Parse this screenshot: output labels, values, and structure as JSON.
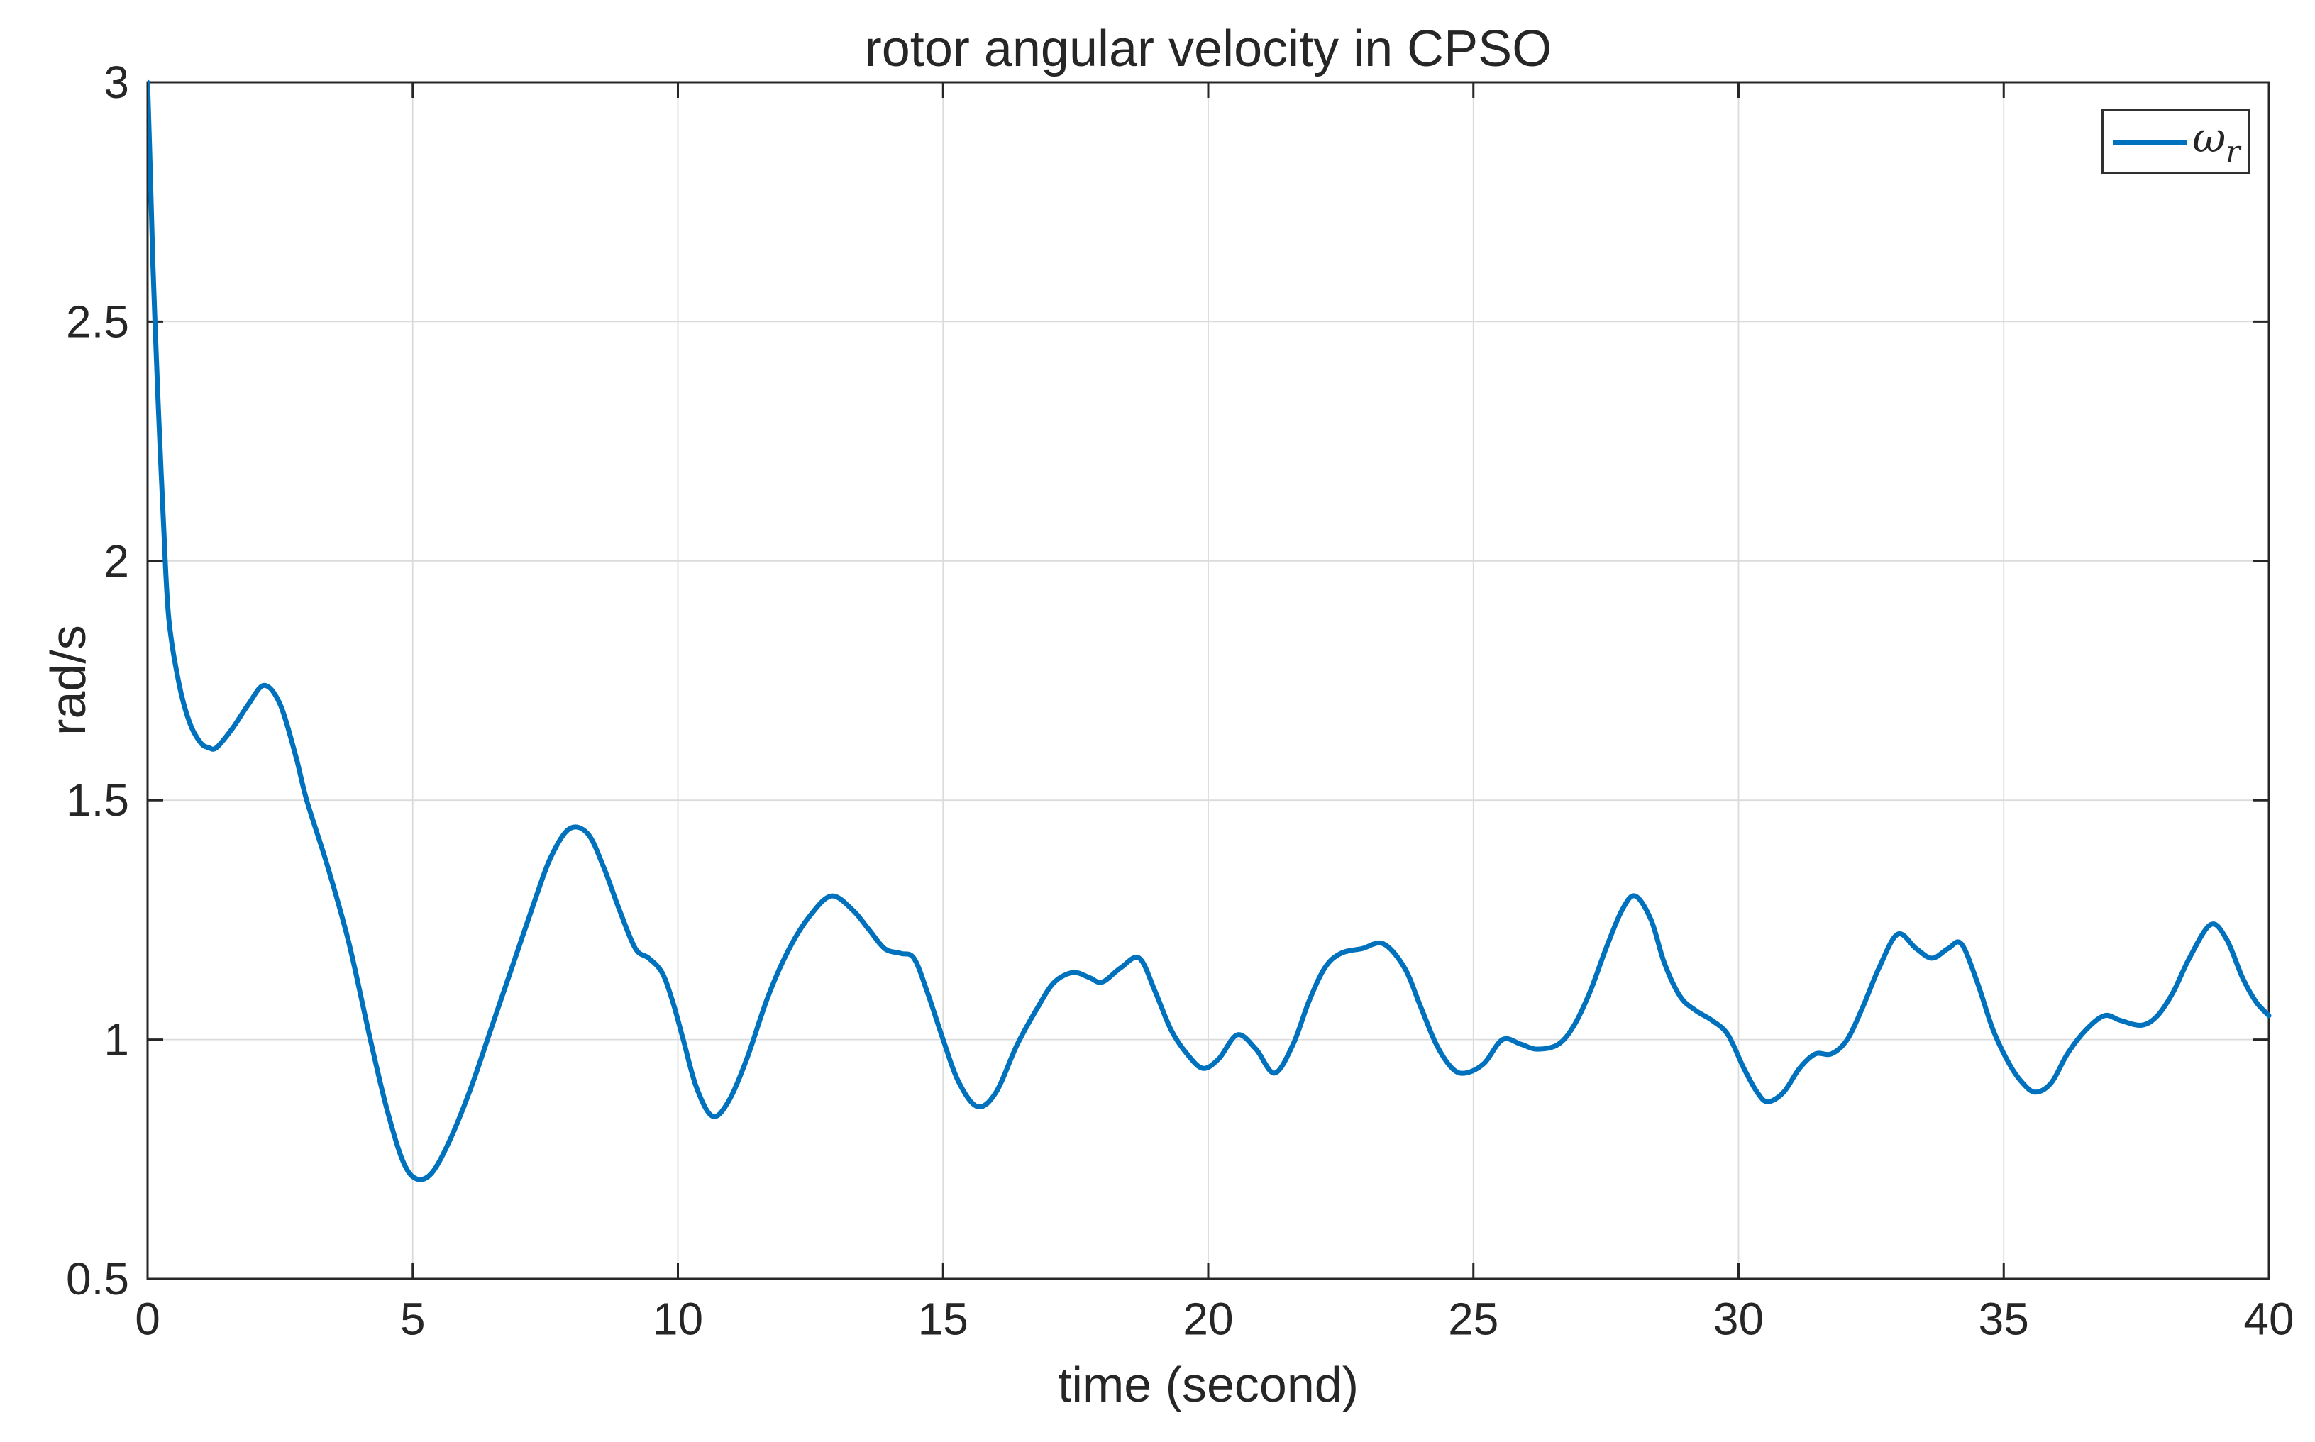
{
  "chart_data": {
    "type": "line",
    "title": "rotor angular velocity in CPSO",
    "xlabel": "time (second)",
    "ylabel": "rad/s",
    "xlim": [
      0,
      40
    ],
    "ylim": [
      0.5,
      3
    ],
    "xticks": [
      0,
      5,
      10,
      15,
      20,
      25,
      30,
      35,
      40
    ],
    "yticks": [
      0.5,
      1,
      1.5,
      2,
      2.5,
      3
    ],
    "grid": true,
    "background_color": "#ffffff",
    "axis_color": "#262626",
    "grid_color": "#dbdbdb",
    "legend": {
      "position": "northeast",
      "symbol": "ω",
      "subscript": "r"
    },
    "series": [
      {
        "name": "omega_r",
        "color": "#0072BD",
        "x": [
          0,
          0.05,
          0.1,
          0.15,
          0.2,
          0.3,
          0.4,
          0.6,
          0.8,
          1.0,
          1.15,
          1.3,
          1.6,
          1.9,
          2.2,
          2.5,
          2.8,
          3.0,
          3.4,
          3.8,
          4.2,
          4.5,
          4.8,
          5.05,
          5.35,
          5.7,
          6.1,
          6.5,
          6.9,
          7.3,
          7.6,
          7.95,
          8.3,
          8.6,
          8.9,
          9.2,
          9.45,
          9.7,
          9.9,
          10.1,
          10.35,
          10.65,
          10.95,
          11.3,
          11.7,
          12.1,
          12.5,
          12.9,
          13.3,
          13.6,
          13.9,
          14.2,
          14.45,
          14.7,
          15.0,
          15.3,
          15.65,
          16.0,
          16.4,
          16.8,
          17.1,
          17.45,
          17.75,
          18.0,
          18.35,
          18.7,
          19.0,
          19.3,
          19.6,
          19.9,
          20.2,
          20.55,
          20.9,
          21.25,
          21.6,
          21.9,
          22.2,
          22.5,
          22.9,
          23.3,
          23.7,
          24.0,
          24.3,
          24.6,
          24.85,
          25.2,
          25.55,
          25.9,
          26.2,
          26.6,
          26.9,
          27.2,
          27.5,
          27.8,
          28.05,
          28.35,
          28.6,
          28.9,
          29.2,
          29.5,
          29.8,
          30.1,
          30.35,
          30.55,
          30.85,
          31.15,
          31.45,
          31.75,
          32.05,
          32.35,
          32.65,
          33.0,
          33.35,
          33.65,
          33.95,
          34.2,
          34.5,
          34.8,
          35.1,
          35.35,
          35.6,
          35.9,
          36.2,
          36.55,
          36.9,
          37.2,
          37.6,
          37.9,
          38.2,
          38.5,
          38.9,
          39.2,
          39.5,
          39.75,
          40.0
        ],
        "y": [
          3.0,
          2.82,
          2.62,
          2.47,
          2.33,
          2.08,
          1.88,
          1.74,
          1.66,
          1.62,
          1.61,
          1.61,
          1.65,
          1.7,
          1.74,
          1.7,
          1.59,
          1.5,
          1.36,
          1.2,
          1.0,
          0.86,
          0.75,
          0.71,
          0.72,
          0.79,
          0.9,
          1.03,
          1.16,
          1.29,
          1.38,
          1.44,
          1.43,
          1.36,
          1.27,
          1.19,
          1.17,
          1.14,
          1.08,
          1.0,
          0.9,
          0.84,
          0.87,
          0.96,
          1.09,
          1.19,
          1.26,
          1.3,
          1.27,
          1.23,
          1.19,
          1.18,
          1.17,
          1.1,
          1.0,
          0.91,
          0.86,
          0.89,
          0.99,
          1.07,
          1.12,
          1.14,
          1.13,
          1.12,
          1.15,
          1.17,
          1.1,
          1.02,
          0.97,
          0.94,
          0.96,
          1.01,
          0.98,
          0.93,
          0.99,
          1.08,
          1.15,
          1.18,
          1.19,
          1.2,
          1.15,
          1.07,
          0.99,
          0.94,
          0.93,
          0.95,
          1.0,
          0.99,
          0.98,
          0.99,
          1.03,
          1.1,
          1.19,
          1.27,
          1.3,
          1.25,
          1.16,
          1.09,
          1.06,
          1.04,
          1.01,
          0.94,
          0.89,
          0.87,
          0.89,
          0.94,
          0.97,
          0.97,
          1.0,
          1.07,
          1.15,
          1.22,
          1.19,
          1.17,
          1.19,
          1.2,
          1.12,
          1.02,
          0.95,
          0.91,
          0.89,
          0.91,
          0.97,
          1.02,
          1.05,
          1.04,
          1.03,
          1.05,
          1.1,
          1.17,
          1.24,
          1.21,
          1.13,
          1.08,
          1.05
        ]
      }
    ]
  }
}
